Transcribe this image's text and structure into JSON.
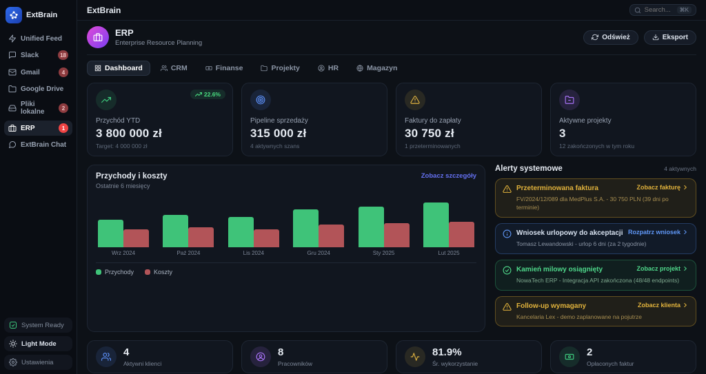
{
  "sidebar": {
    "logo_text": "ExtBrain",
    "items": [
      {
        "label": "Unified Feed"
      },
      {
        "label": "Slack",
        "badge": "18"
      },
      {
        "label": "Gmail",
        "badge": "4"
      },
      {
        "label": "Google Drive"
      },
      {
        "label": "Pliki lokalne",
        "badge": "2"
      },
      {
        "label": "ERP",
        "badge": "1"
      },
      {
        "label": "ExtBrain Chat"
      }
    ],
    "footer": {
      "status": "System Ready",
      "theme_toggle": "Light Mode",
      "settings": "Ustawienia"
    }
  },
  "topbar": {
    "title": "ExtBrain",
    "search_placeholder": "Search...",
    "search_shortcut": "⌘K"
  },
  "header": {
    "title": "ERP",
    "subtitle": "Enterprise Resource Planning",
    "refresh_label": "Odśwież",
    "export_label": "Eksport"
  },
  "tabs": [
    {
      "label": "Dashboard"
    },
    {
      "label": "CRM"
    },
    {
      "label": "Finanse"
    },
    {
      "label": "Projekty"
    },
    {
      "label": "HR"
    },
    {
      "label": "Magazyn"
    }
  ],
  "kpis": [
    {
      "label": "Przychód YTD",
      "value": "3 800 000 zł",
      "sub": "Target: 4 000 000 zł",
      "badge": "22.6%"
    },
    {
      "label": "Pipeline sprzedaży",
      "value": "315 000 zł",
      "sub": "4 aktywnych szans"
    },
    {
      "label": "Faktury do zapłaty",
      "value": "30 750 zł",
      "sub": "1 przeterminowanych"
    },
    {
      "label": "Aktywne projekty",
      "value": "3",
      "sub": "12 zakończonych w tym roku"
    }
  ],
  "chart": {
    "title": "Przychody i koszty",
    "subtitle": "Ostatnie 6 miesięcy",
    "link": "Zobacz szczegóły"
  },
  "chart_data": {
    "type": "bar",
    "title": "Przychody i koszty",
    "subtitle": "Ostatnie 6 miesięcy",
    "categories": [
      "Wrz 2024",
      "Paź 2024",
      "Lis 2024",
      "Gru 2024",
      "Sty 2025",
      "Lut 2025"
    ],
    "series": [
      {
        "name": "Przychody",
        "color": "#3fc379",
        "values": [
          520000,
          600000,
          560000,
          710000,
          760000,
          830000
        ]
      },
      {
        "name": "Koszty",
        "color": "#b25458",
        "values": [
          340000,
          370000,
          330000,
          420000,
          450000,
          470000
        ]
      }
    ],
    "ylim": [
      0,
      900000
    ],
    "grid": false,
    "legend_position": "bottom"
  },
  "alerts": {
    "title": "Alerty systemowe",
    "count_label": "4 aktywnych",
    "items": [
      {
        "type": "warning",
        "title": "Przeterminowana faktura",
        "desc": "FV/2024/12/089 dla MedPlus S.A. - 30 750 PLN (39 dni po terminie)",
        "action": "Zobacz fakturę"
      },
      {
        "type": "info",
        "title": "Wniosek urlopowy do akceptacji",
        "desc": "Tomasz Lewandowski - urlop 6 dni (za 2 tygodnie)",
        "action": "Rozpatrz wniosek"
      },
      {
        "type": "success",
        "title": "Kamień milowy osiągnięty",
        "desc": "NowaTech ERP - Integracja API zakończona (48/48 endpoints)",
        "action": "Zobacz projekt"
      },
      {
        "type": "warning",
        "title": "Follow-up wymagany",
        "desc": "Kancelaria Lex - demo zaplanowane na pojutrze",
        "action": "Zobacz klienta"
      }
    ]
  },
  "stats": [
    {
      "value": "4",
      "label": "Aktywni klienci"
    },
    {
      "value": "8",
      "label": "Pracowników"
    },
    {
      "value": "81.9%",
      "label": "Śr. wykorzystanie"
    },
    {
      "value": "2",
      "label": "Opłaconych faktur"
    }
  ],
  "colors": {
    "accent_green": "#3ecb7e",
    "accent_blue": "#5b8ef5",
    "accent_yellow": "#e0b341",
    "accent_purple": "#a873f6",
    "link_indigo": "#6571f3",
    "badge_red": "#ef4444"
  }
}
